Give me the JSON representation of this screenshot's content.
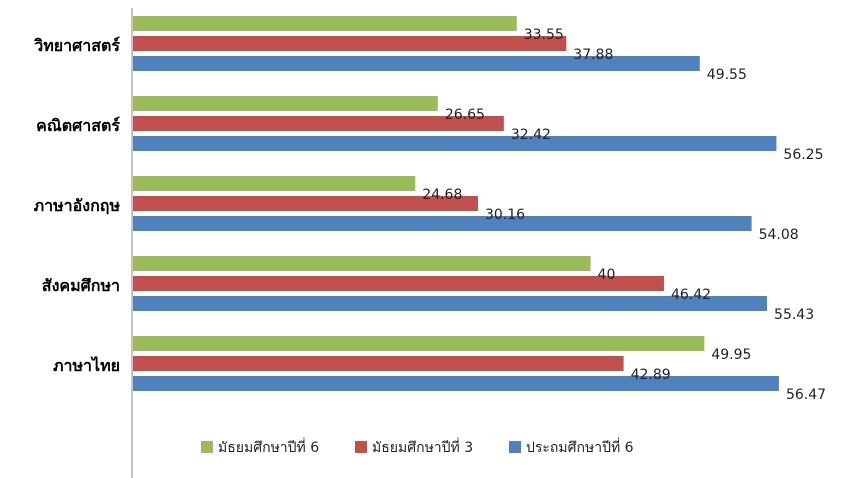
{
  "chart_data": {
    "type": "bar",
    "orientation": "horizontal",
    "title": "",
    "xlabel": "",
    "ylabel": "",
    "xlim": [
      0,
      57
    ],
    "grid": false,
    "legend_position": "bottom",
    "categories": [
      "วิทยาศาสตร์",
      "คณิตศาสตร์",
      "ภาษาอังกฤษ",
      "สังคมศึกษา",
      "ภาษาไทย"
    ],
    "series": [
      {
        "name": "มัธยมศึกษาปีที่ 6",
        "color": "#9BBB59",
        "values": [
          33.55,
          26.65,
          24.68,
          40,
          49.95
        ]
      },
      {
        "name": "มัธยมศึกษาปีที่ 3",
        "color": "#C0504D",
        "values": [
          37.88,
          32.42,
          30.16,
          46.42,
          42.89
        ]
      },
      {
        "name": "ประถมศึกษาปีที่ 6",
        "color": "#4F81BD",
        "values": [
          49.55,
          56.25,
          54.08,
          55.43,
          56.47
        ]
      }
    ],
    "value_labels": [
      [
        "33.55",
        "26.65",
        "24.68",
        "40",
        "49.95"
      ],
      [
        "37.88",
        "32.42",
        "30.16",
        "46.42",
        "42.89"
      ],
      [
        "49.55",
        "56.25",
        "54.08",
        "55.43",
        "56.47"
      ]
    ]
  }
}
